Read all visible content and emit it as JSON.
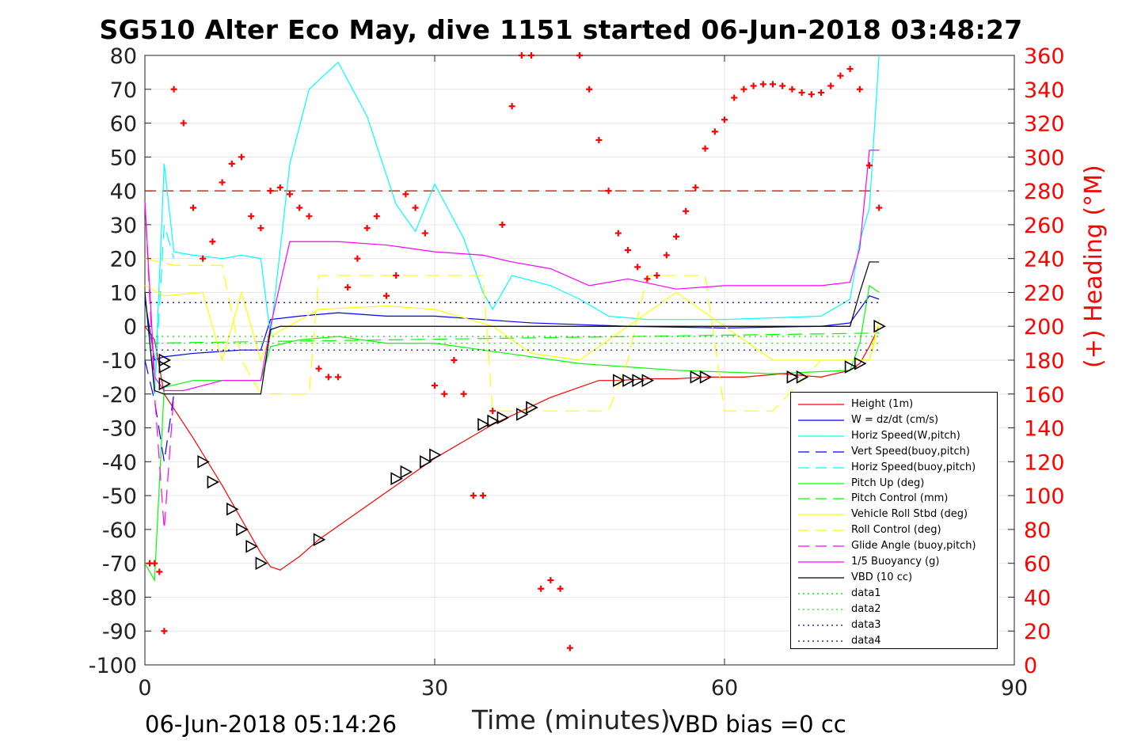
{
  "title": "SG510 Alter Eco May, dive 1151 started 06-Jun-2018 03:48:27",
  "footer_left": "06-Jun-2018 05:14:26",
  "footer_right": "VBD bias =0 cc",
  "chart_data": {
    "type": "line",
    "title": "SG510 Alter Eco May, dive 1151 started 06-Jun-2018 03:48:27",
    "xlabel": "Time (minutes)",
    "ylabel": "",
    "ylabel_right": "(+) Heading (°M)",
    "xlim": [
      0,
      90
    ],
    "ylim": [
      -100,
      80
    ],
    "ylim_right": [
      0,
      360
    ],
    "xticks": [
      0,
      30,
      60,
      90
    ],
    "yticks": [
      80,
      70,
      60,
      50,
      40,
      30,
      20,
      10,
      0,
      -10,
      -20,
      -30,
      -40,
      -50,
      -60,
      -70,
      -80,
      -90,
      -100
    ],
    "yticks_right": [
      360,
      340,
      320,
      300,
      280,
      260,
      240,
      220,
      200,
      180,
      160,
      140,
      120,
      100,
      80,
      60,
      40,
      20,
      0
    ],
    "grid": true,
    "legend_position": "bottom-right",
    "series": [
      {
        "name": "Height (1m)",
        "color": "#ff0000",
        "style": "solid",
        "x": [
          0,
          1,
          2,
          5,
          8,
          10,
          12,
          13,
          14,
          16,
          18,
          20,
          22,
          24,
          26,
          28,
          30,
          33,
          36,
          39,
          42,
          45,
          47,
          49,
          52,
          55,
          58,
          62,
          66,
          70,
          73,
          74,
          75,
          76
        ],
        "y": [
          0,
          -4,
          -20,
          -33,
          -47,
          -57,
          -67,
          -71,
          -72,
          -68,
          -63,
          -59,
          -55,
          -51,
          -47,
          -43,
          -39,
          -34,
          -29,
          -25,
          -21,
          -18,
          -16,
          -16,
          -15.5,
          -15.5,
          -15,
          -15,
          -14,
          -15,
          -13,
          -11,
          -6,
          0
        ]
      },
      {
        "name": "W = dz/dt (cm/s)",
        "color": "#0000ff",
        "style": "solid",
        "x": [
          0,
          1,
          2,
          5,
          10,
          12,
          13,
          16,
          20,
          25,
          30,
          35,
          40,
          45,
          50,
          60,
          70,
          73,
          74,
          75,
          76
        ],
        "y": [
          8,
          -10,
          -9,
          -8,
          -7,
          -7,
          2,
          3,
          4,
          3,
          3,
          2,
          1,
          0.5,
          0,
          -0.5,
          0,
          1,
          5,
          9,
          8
        ]
      },
      {
        "name": "Horiz Speed(W,pitch)",
        "color": "#00ffff",
        "style": "solid",
        "x": [
          0,
          1,
          2,
          3,
          5,
          8,
          10,
          12,
          13,
          15,
          17,
          20,
          23,
          26,
          28,
          30,
          33,
          35,
          36,
          38,
          42,
          45,
          48,
          52,
          60,
          70,
          73,
          74,
          75,
          76
        ],
        "y": [
          10,
          -20,
          48,
          22,
          21,
          20,
          21,
          20,
          -3,
          48,
          70,
          78,
          62,
          36,
          28,
          42,
          26,
          10,
          5,
          15,
          12,
          8,
          3,
          2,
          2,
          3,
          8,
          25,
          35,
          80
        ]
      },
      {
        "name": "Vert Speed(buoy,pitch)",
        "color": "#0000ff",
        "style": "dashed",
        "x": [
          0,
          1,
          2,
          3
        ],
        "y": [
          -10,
          -22,
          -40,
          -20
        ]
      },
      {
        "name": "Horiz Speed(buoy,pitch)",
        "color": "#00ffff",
        "style": "dashed",
        "x": [
          1,
          2,
          3
        ],
        "y": [
          -20,
          30,
          20
        ]
      },
      {
        "name": "Pitch Up (deg)",
        "color": "#00ff00",
        "style": "solid",
        "x": [
          0,
          1,
          2,
          5,
          12,
          13,
          16,
          20,
          25,
          30,
          35,
          40,
          45,
          55,
          65,
          73,
          74,
          75,
          76
        ],
        "y": [
          -70,
          -75,
          -18,
          -16,
          -16,
          -6,
          -4,
          -3,
          -5,
          -5,
          -7,
          -9,
          -11,
          -13,
          -14,
          -13,
          -5,
          12,
          10
        ]
      },
      {
        "name": "Pitch Control (mm)",
        "color": "#00ff00",
        "style": "dashed",
        "x": [
          0,
          76
        ],
        "y": [
          -5,
          -2
        ]
      },
      {
        "name": "Vehicle Roll Stbd (deg)",
        "color": "#ffff00",
        "style": "solid",
        "x": [
          0,
          2,
          6,
          7,
          8,
          10,
          11,
          12,
          13,
          18,
          25,
          30,
          36,
          40,
          45,
          50,
          55,
          60,
          65,
          70,
          75,
          76
        ],
        "y": [
          12,
          9,
          10,
          0,
          -10,
          10,
          0,
          -10,
          -3,
          5,
          6,
          5,
          0,
          -8,
          -10,
          0,
          10,
          0,
          -10,
          -10,
          -10,
          2
        ]
      },
      {
        "name": "Roll Control (deg)",
        "color": "#ffff00",
        "style": "dashed",
        "x": [
          0,
          3,
          8,
          10,
          12,
          17,
          18,
          30,
          35,
          36,
          40,
          48,
          50,
          52,
          58,
          60,
          65,
          70,
          75,
          76
        ],
        "y": [
          20,
          18,
          18,
          -10,
          -20,
          -20,
          15,
          15,
          15,
          -25,
          -25,
          -25,
          -10,
          15,
          15,
          -25,
          -25,
          -10,
          -10,
          0
        ]
      },
      {
        "name": "Glide Angle (buoy,pitch)",
        "color": "#ff00ff",
        "style": "dashed",
        "x": [
          0,
          1,
          2,
          3
        ],
        "y": [
          37,
          -20,
          -60,
          -20
        ]
      },
      {
        "name": "1/5 Buoyancy (g)",
        "color": "#ff00ff",
        "style": "solid",
        "x": [
          0,
          1,
          2,
          4,
          8,
          12,
          13,
          15,
          20,
          25,
          30,
          35,
          38,
          42,
          46,
          50,
          55,
          60,
          65,
          70,
          73,
          74,
          75,
          76
        ],
        "y": [
          37,
          -15,
          -19,
          -19,
          -16,
          -16,
          0,
          25,
          25,
          24,
          22,
          21,
          19,
          17,
          12,
          14,
          11,
          12,
          12,
          12,
          13,
          23,
          52,
          52
        ]
      },
      {
        "name": "VBD (10 cc)",
        "color": "#000000",
        "style": "solid",
        "x": [
          0,
          1,
          2,
          12,
          13,
          14,
          73,
          74,
          75,
          76
        ],
        "y": [
          10,
          -19,
          -20,
          -20,
          -1,
          0,
          0,
          10,
          19,
          19
        ]
      },
      {
        "name": "data1",
        "color": "#00cc00",
        "style": "dotted",
        "x": [
          0,
          76
        ],
        "y": [
          -3,
          -3
        ]
      },
      {
        "name": "data2",
        "color": "#00ff00",
        "style": "dotted",
        "x": [
          0,
          76
        ],
        "y": [
          -5,
          -5
        ]
      },
      {
        "name": "data3",
        "color": "#00008b",
        "style": "dotted",
        "x": [
          0,
          76
        ],
        "y": [
          7,
          7
        ]
      },
      {
        "name": "data4",
        "color": "#00008b",
        "style": "dotted",
        "x": [
          0,
          76
        ],
        "y": [
          -7,
          -7
        ]
      }
    ],
    "reference_line": {
      "color": "#cc0000",
      "style": "dashed",
      "y_right": 280,
      "x": [
        0,
        76
      ]
    },
    "heading": {
      "color": "#ff0000",
      "marker": "+",
      "x": [
        0.5,
        1,
        1.5,
        2,
        3,
        4,
        5,
        6,
        7,
        8,
        9,
        10,
        11,
        12,
        13,
        14,
        15,
        16,
        17,
        18,
        19,
        20,
        21,
        22,
        23,
        24,
        25,
        26,
        27,
        28,
        29,
        30,
        31,
        32,
        33,
        34,
        35,
        36,
        37,
        38,
        39,
        40,
        41,
        42,
        43,
        44,
        45,
        46,
        47,
        48,
        49,
        50,
        51,
        52,
        53,
        54,
        55,
        56,
        57,
        58,
        59,
        60,
        61,
        62,
        63,
        64,
        65,
        66,
        67,
        68,
        69,
        70,
        71,
        72,
        73,
        74,
        75,
        76
      ],
      "y": [
        60,
        60,
        55,
        20,
        340,
        320,
        270,
        240,
        250,
        285,
        296,
        300,
        265,
        258,
        280,
        282,
        278,
        270,
        265,
        175,
        170,
        170,
        223,
        240,
        258,
        265,
        218,
        230,
        278,
        270,
        255,
        165,
        160,
        180,
        160,
        100,
        100,
        150,
        260,
        330,
        360,
        360,
        45,
        50,
        45,
        10,
        360,
        340,
        310,
        280,
        255,
        245,
        235,
        228,
        230,
        242,
        253,
        268,
        282,
        305,
        315,
        322,
        335,
        340,
        342,
        343,
        343,
        342,
        340,
        338,
        337,
        338,
        342,
        348,
        352,
        340,
        295,
        270
      ]
    },
    "markers": {
      "color": "#000000",
      "shape": "triangle",
      "x": [
        2,
        2,
        2,
        6,
        7,
        9,
        10,
        11,
        12,
        18,
        26,
        27,
        29,
        30,
        35,
        36,
        37,
        39,
        40,
        49,
        50,
        51,
        52,
        57,
        58,
        67,
        68,
        73,
        74,
        76
      ],
      "y": [
        -10,
        -12,
        -17,
        -40,
        -46,
        -54,
        -60,
        -65,
        -70,
        -63,
        -45,
        -43,
        -40,
        -38,
        -29,
        -28,
        -27,
        -26,
        -24,
        -16,
        -16,
        -16,
        -16,
        -15,
        -15,
        -15,
        -15,
        -12,
        -11,
        0
      ]
    }
  }
}
